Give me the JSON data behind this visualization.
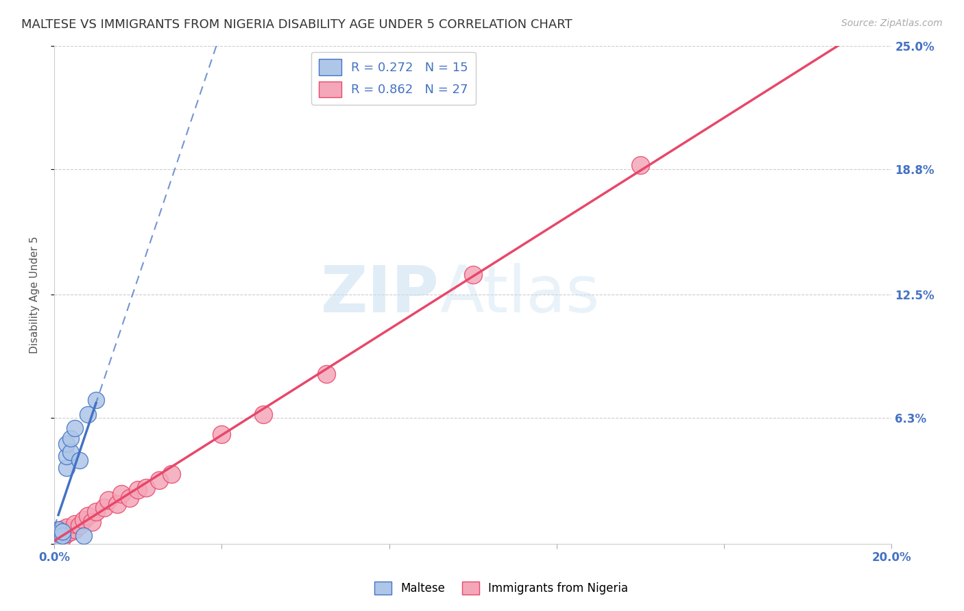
{
  "title": "MALTESE VS IMMIGRANTS FROM NIGERIA DISABILITY AGE UNDER 5 CORRELATION CHART",
  "source": "Source: ZipAtlas.com",
  "ylabel": "Disability Age Under 5",
  "xlim": [
    0.0,
    0.2
  ],
  "ylim": [
    0.0,
    0.25
  ],
  "ytick_positions": [
    0.0,
    0.063,
    0.125,
    0.188,
    0.25
  ],
  "yticklabels": [
    "",
    "6.3%",
    "12.5%",
    "18.8%",
    "25.0%"
  ],
  "maltese_x": [
    0.001,
    0.001,
    0.001,
    0.002,
    0.002,
    0.003,
    0.003,
    0.003,
    0.004,
    0.004,
    0.005,
    0.006,
    0.007,
    0.008,
    0.01
  ],
  "maltese_y": [
    0.003,
    0.005,
    0.007,
    0.004,
    0.006,
    0.038,
    0.044,
    0.05,
    0.046,
    0.053,
    0.058,
    0.042,
    0.004,
    0.065,
    0.072
  ],
  "nigeria_x": [
    0.001,
    0.002,
    0.002,
    0.003,
    0.003,
    0.004,
    0.005,
    0.005,
    0.006,
    0.007,
    0.008,
    0.009,
    0.01,
    0.012,
    0.013,
    0.015,
    0.016,
    0.018,
    0.02,
    0.022,
    0.025,
    0.028,
    0.04,
    0.05,
    0.065,
    0.1,
    0.14
  ],
  "nigeria_y": [
    0.004,
    0.003,
    0.007,
    0.005,
    0.008,
    0.006,
    0.007,
    0.01,
    0.009,
    0.012,
    0.014,
    0.011,
    0.016,
    0.018,
    0.022,
    0.02,
    0.025,
    0.023,
    0.027,
    0.028,
    0.032,
    0.035,
    0.055,
    0.065,
    0.085,
    0.135,
    0.19
  ],
  "maltese_color": "#aec6e8",
  "nigeria_color": "#f4a7b9",
  "maltese_line_color": "#4472c4",
  "nigeria_line_color": "#e8476a",
  "maltese_R": 0.272,
  "maltese_N": 15,
  "nigeria_R": 0.862,
  "nigeria_N": 27,
  "watermark_zip": "ZIP",
  "watermark_atlas": "Atlas",
  "legend_maltese": "Maltese",
  "legend_nigeria": "Immigrants from Nigeria",
  "grid_color": "#cccccc",
  "title_fontsize": 13,
  "axis_fontsize": 11,
  "tick_fontsize": 12,
  "source_fontsize": 10
}
